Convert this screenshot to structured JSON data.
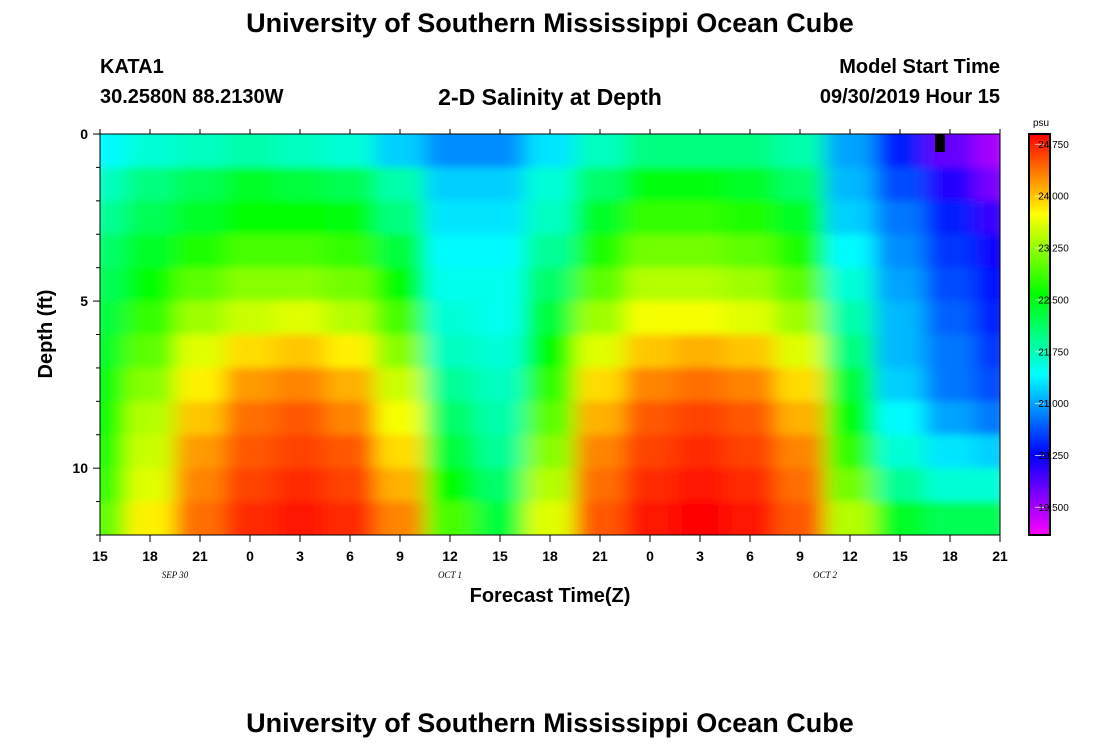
{
  "header": {
    "title": "University of Southern Mississippi Ocean Cube",
    "station": "KATA1",
    "coords": "30.2580N 88.2130W",
    "model_label": "Model Start Time",
    "model_time": "09/30/2019 Hour 15"
  },
  "footer": {
    "title": "University of Southern Mississippi Ocean Cube"
  },
  "chart_data": {
    "type": "heatmap",
    "title": "2-D Salinity at Depth",
    "xlabel": "Forecast Time(Z)",
    "ylabel": "Depth (ft)",
    "x_tick_labels": [
      "15",
      "18",
      "21",
      "0",
      "3",
      "6",
      "9",
      "12",
      "15",
      "18",
      "21",
      "0",
      "3",
      "6",
      "9",
      "12",
      "15",
      "18",
      "21"
    ],
    "x_range_hours": [
      0,
      54
    ],
    "date_labels": [
      {
        "text": "SEP 30",
        "hour": 4.5
      },
      {
        "text": "OCT 1",
        "hour": 21
      },
      {
        "text": "OCT 2",
        "hour": 43.5
      }
    ],
    "y_ticks": [
      0,
      5,
      10
    ],
    "y_range_ft": [
      0,
      12
    ],
    "grid": false,
    "colorbar": {
      "unit": "psu",
      "range": [
        19.1,
        24.9
      ],
      "ticks": [
        "24.750",
        "24.000",
        "23.250",
        "22.500",
        "21.750",
        "21.000",
        "20.250",
        "19.500"
      ],
      "placement": "right"
    },
    "rows_depth_ft": [
      0.5,
      1.5,
      2.5,
      3.5,
      4.5,
      5.5,
      6.5,
      7.5,
      8.5,
      9.5,
      10.5,
      11.5
    ],
    "columns_hour": [
      0,
      3,
      6,
      9,
      12,
      15,
      18,
      21,
      24,
      27,
      30,
      33,
      36,
      39,
      42,
      45,
      48,
      51,
      54
    ],
    "salinity_psu": [
      [
        21.4,
        21.6,
        21.7,
        21.8,
        21.7,
        21.6,
        21.2,
        20.9,
        20.9,
        21.3,
        21.7,
        22.0,
        22.0,
        22.0,
        21.8,
        21.0,
        20.4,
        19.8,
        19.5
      ],
      [
        21.7,
        22.0,
        22.2,
        22.4,
        22.3,
        22.2,
        21.8,
        21.2,
        21.2,
        21.6,
        22.1,
        22.5,
        22.5,
        22.4,
        22.1,
        21.1,
        20.6,
        20.1,
        19.7
      ],
      [
        21.9,
        22.2,
        22.4,
        22.6,
        22.6,
        22.5,
        22.0,
        21.3,
        21.3,
        21.7,
        22.4,
        22.8,
        22.8,
        22.7,
        22.4,
        21.2,
        20.8,
        20.4,
        20.0
      ],
      [
        22.1,
        22.4,
        22.7,
        22.9,
        22.9,
        22.8,
        22.3,
        21.4,
        21.4,
        21.9,
        22.7,
        23.1,
        23.1,
        23.0,
        22.7,
        21.4,
        20.9,
        20.5,
        20.2
      ],
      [
        22.2,
        22.6,
        23.0,
        23.2,
        23.2,
        23.1,
        22.6,
        21.5,
        21.5,
        22.1,
        23.0,
        23.4,
        23.4,
        23.3,
        23.0,
        21.6,
        21.0,
        20.6,
        20.3
      ],
      [
        22.3,
        22.8,
        23.3,
        23.5,
        23.6,
        23.4,
        22.9,
        21.6,
        21.5,
        22.3,
        23.3,
        23.7,
        23.7,
        23.6,
        23.3,
        21.8,
        21.1,
        20.7,
        20.4
      ],
      [
        22.4,
        23.0,
        23.6,
        23.9,
        24.0,
        23.8,
        23.2,
        21.7,
        21.6,
        22.6,
        23.6,
        24.0,
        24.1,
        24.0,
        23.6,
        22.0,
        21.1,
        20.8,
        20.5
      ],
      [
        22.5,
        23.2,
        23.8,
        24.2,
        24.3,
        24.1,
        23.5,
        21.9,
        21.7,
        22.8,
        23.9,
        24.3,
        24.4,
        24.3,
        23.9,
        22.3,
        21.2,
        20.8,
        20.6
      ],
      [
        22.6,
        23.4,
        24.0,
        24.4,
        24.5,
        24.3,
        23.7,
        22.1,
        21.8,
        23.0,
        24.1,
        24.5,
        24.6,
        24.5,
        24.1,
        22.5,
        21.4,
        21.0,
        20.8
      ],
      [
        22.7,
        23.5,
        24.2,
        24.5,
        24.6,
        24.5,
        23.9,
        22.3,
        21.9,
        23.2,
        24.3,
        24.6,
        24.7,
        24.6,
        24.3,
        22.8,
        21.6,
        21.3,
        21.2
      ],
      [
        22.8,
        23.6,
        24.3,
        24.6,
        24.7,
        24.6,
        24.1,
        22.6,
        22.1,
        23.4,
        24.4,
        24.7,
        24.8,
        24.7,
        24.4,
        23.1,
        21.9,
        21.6,
        21.6
      ],
      [
        23.0,
        23.8,
        24.4,
        24.7,
        24.8,
        24.7,
        24.3,
        22.9,
        22.3,
        23.6,
        24.5,
        24.8,
        24.9,
        24.8,
        24.5,
        23.4,
        22.4,
        22.2,
        22.2
      ]
    ]
  }
}
